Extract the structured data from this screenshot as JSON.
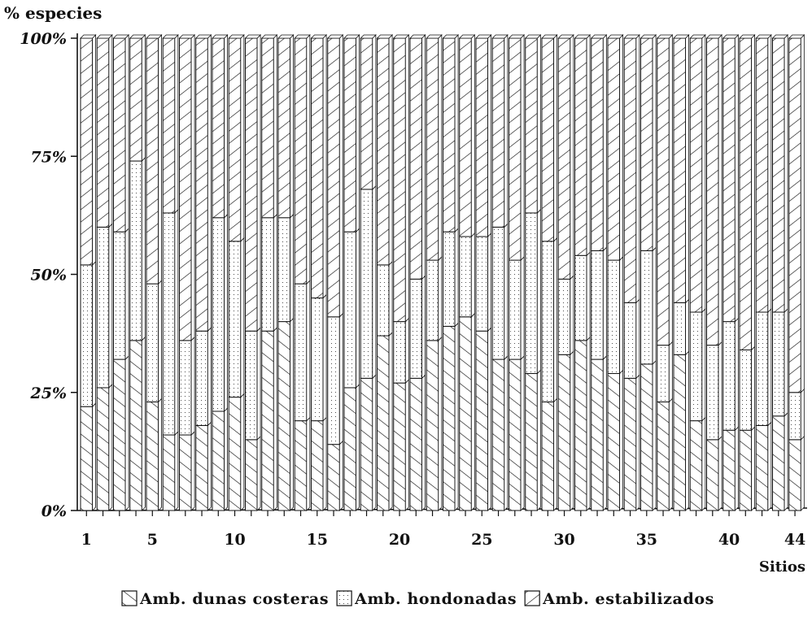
{
  "chart_data": {
    "type": "bar",
    "stacked": true,
    "percent": true,
    "ylabel": "% especies",
    "xlabel": "Sitios",
    "ylim": [
      0,
      100
    ],
    "y_ticks": [
      "0%",
      "25%",
      "50%",
      "75%",
      "100%"
    ],
    "x_tick_labels": [
      "1",
      "5",
      "10",
      "15",
      "20",
      "25",
      "30",
      "35",
      "40",
      "44"
    ],
    "categories": [
      1,
      2,
      3,
      4,
      5,
      6,
      7,
      8,
      9,
      10,
      11,
      12,
      13,
      14,
      15,
      16,
      17,
      18,
      19,
      20,
      21,
      22,
      23,
      24,
      25,
      26,
      27,
      28,
      29,
      30,
      31,
      32,
      33,
      34,
      35,
      36,
      37,
      38,
      39,
      40,
      41,
      42,
      43,
      44
    ],
    "series": [
      {
        "name": "Amb. dunas costeras",
        "pattern": "hatch-forward",
        "values": [
          22,
          26,
          32,
          36,
          23,
          16,
          16,
          18,
          21,
          24,
          15,
          38,
          40,
          19,
          19,
          14,
          26,
          28,
          37,
          27,
          28,
          36,
          39,
          41,
          38,
          32,
          32,
          29,
          23,
          33,
          36,
          32,
          29,
          28,
          31,
          23,
          33,
          19,
          15,
          17,
          17,
          18,
          20,
          15
        ]
      },
      {
        "name": "Amb. hondonadas",
        "pattern": "dots",
        "values": [
          30,
          34,
          27,
          38,
          25,
          47,
          20,
          20,
          41,
          33,
          23,
          24,
          22,
          29,
          26,
          27,
          33,
          40,
          15,
          13,
          21,
          17,
          20,
          17,
          20,
          28,
          21,
          34,
          34,
          16,
          18,
          23,
          24,
          16,
          24,
          12,
          11,
          23,
          20,
          23,
          17,
          24,
          22,
          10
        ]
      },
      {
        "name": "Amb. estabilizados",
        "pattern": "hatch-back",
        "values": [
          48,
          40,
          41,
          26,
          52,
          37,
          64,
          62,
          38,
          43,
          62,
          38,
          38,
          52,
          55,
          59,
          41,
          32,
          48,
          60,
          51,
          47,
          41,
          42,
          42,
          40,
          47,
          37,
          43,
          51,
          46,
          45,
          47,
          56,
          45,
          65,
          56,
          58,
          65,
          60,
          66,
          58,
          58,
          75
        ]
      }
    ],
    "legend_position": "bottom-center",
    "grid": false
  }
}
